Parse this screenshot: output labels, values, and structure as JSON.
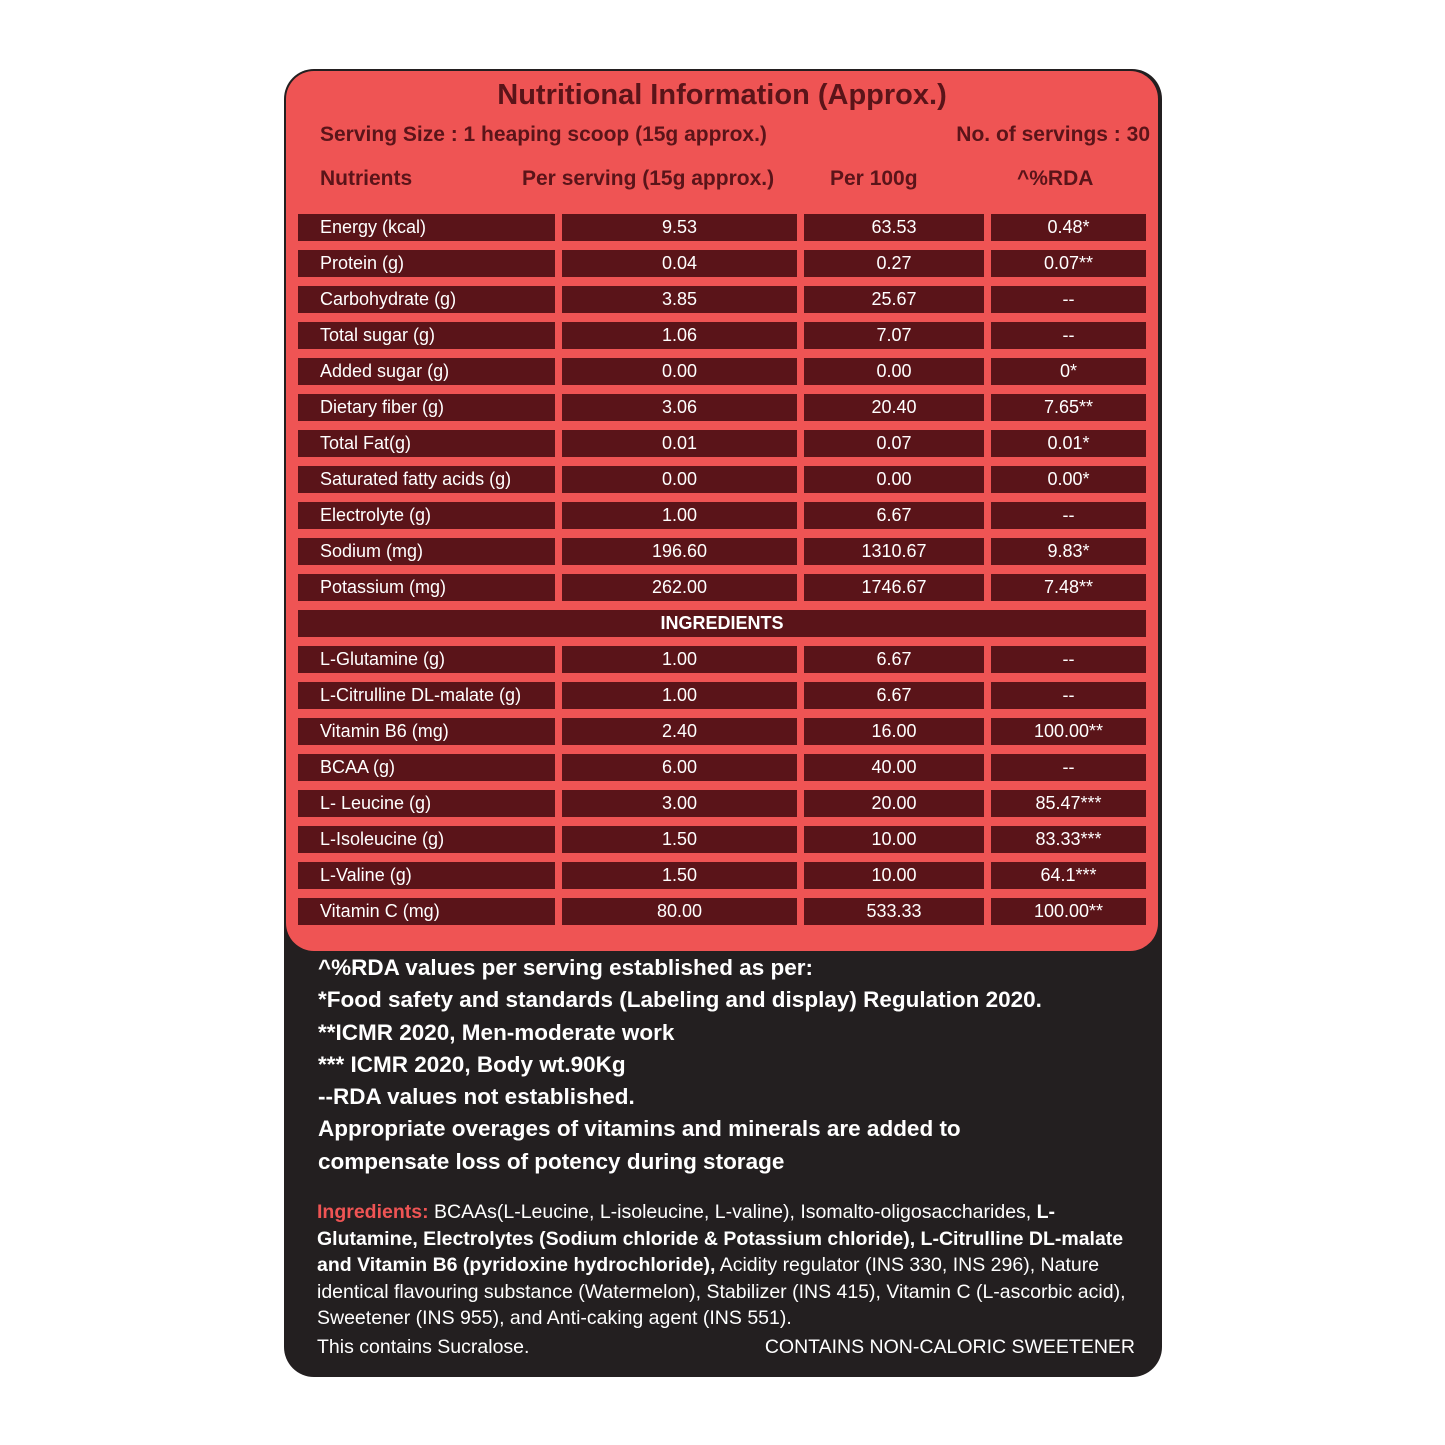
{
  "title": "Nutritional Information (Approx.)",
  "serving_size": "Serving Size : 1 heaping scoop (15g approx.)",
  "servings": "No. of servings : 30",
  "columns": [
    "Nutrients",
    "Per serving (15g approx.)",
    "Per 100g",
    "^%RDA"
  ],
  "nutrients": [
    [
      "Energy (kcal)",
      "9.53",
      "63.53",
      "0.48*"
    ],
    [
      "Protein (g)",
      "0.04",
      "0.27",
      "0.07**"
    ],
    [
      "Carbohydrate (g)",
      "3.85",
      "25.67",
      "--"
    ],
    [
      "Total sugar (g)",
      "1.06",
      "7.07",
      "--"
    ],
    [
      "Added sugar (g)",
      "0.00",
      "0.00",
      "0*"
    ],
    [
      "Dietary fiber (g)",
      "3.06",
      "20.40",
      "7.65**"
    ],
    [
      "Total Fat(g)",
      "0.01",
      "0.07",
      "0.01*"
    ],
    [
      "Saturated fatty acids (g)",
      "0.00",
      "0.00",
      "0.00*"
    ],
    [
      "Electrolyte (g)",
      "1.00",
      "6.67",
      "--"
    ],
    [
      "Sodium (mg)",
      "196.60",
      "1310.67",
      "9.83*"
    ],
    [
      "Potassium (mg)",
      "262.00",
      "1746.67",
      "7.48**"
    ]
  ],
  "section_label": "INGREDIENTS",
  "ingredients_rows": [
    [
      "L-Glutamine (g)",
      "1.00",
      "6.67",
      "--"
    ],
    [
      "L-Citrulline DL-malate (g)",
      "1.00",
      "6.67",
      "--"
    ],
    [
      "Vitamin B6 (mg)",
      "2.40",
      "16.00",
      "100.00**"
    ],
    [
      "BCAA (g)",
      "6.00",
      "40.00",
      "--"
    ],
    [
      "L- Leucine (g)",
      "3.00",
      "20.00",
      "85.47***"
    ],
    [
      "L-Isoleucine (g)",
      "1.50",
      "10.00",
      "83.33***"
    ],
    [
      "L-Valine (g)",
      "1.50",
      "10.00",
      "64.1***"
    ],
    [
      "Vitamin C (mg)",
      "80.00",
      "533.33",
      "100.00**"
    ]
  ],
  "notes": [
    "^%RDA values per serving established as per:",
    "*Food safety and standards (Labeling and display) Regulation 2020.",
    "**ICMR 2020, Men-moderate work",
    "*** ICMR 2020, Body wt.90Kg",
    "--RDA values not established.",
    "Appropriate overages of vitamins and minerals are added to",
    "compensate loss of potency during storage"
  ],
  "ingredients_text": {
    "label": "Ingredients:",
    "segments": [
      {
        "text": " BCAAs(L-Leucine, L-isoleucine, L-valine), Isomalto-oligosaccharides, ",
        "bold": false
      },
      {
        "text": "L-Glutamine, Electrolytes (Sodium chloride & Potassium chloride), L-Citrulline DL-malate and Vitamin B6 (pyridoxine hydrochloride),",
        "bold": true
      },
      {
        "text": " Acidity regulator (INS 330, INS 296), Nature identical flavouring substance (Watermelon), Stabilizer (INS 415), Vitamin C (L-ascorbic acid), Sweetener (INS 955), and Anti-caking agent (INS 551).",
        "bold": false
      }
    ]
  },
  "footer_left": "This contains Sucralose.",
  "footer_right": "CONTAINS NON-CALORIC SWEETENER",
  "colors": {
    "panel": "#ef5454",
    "cell": "#5a1419",
    "background": "#231f20"
  }
}
